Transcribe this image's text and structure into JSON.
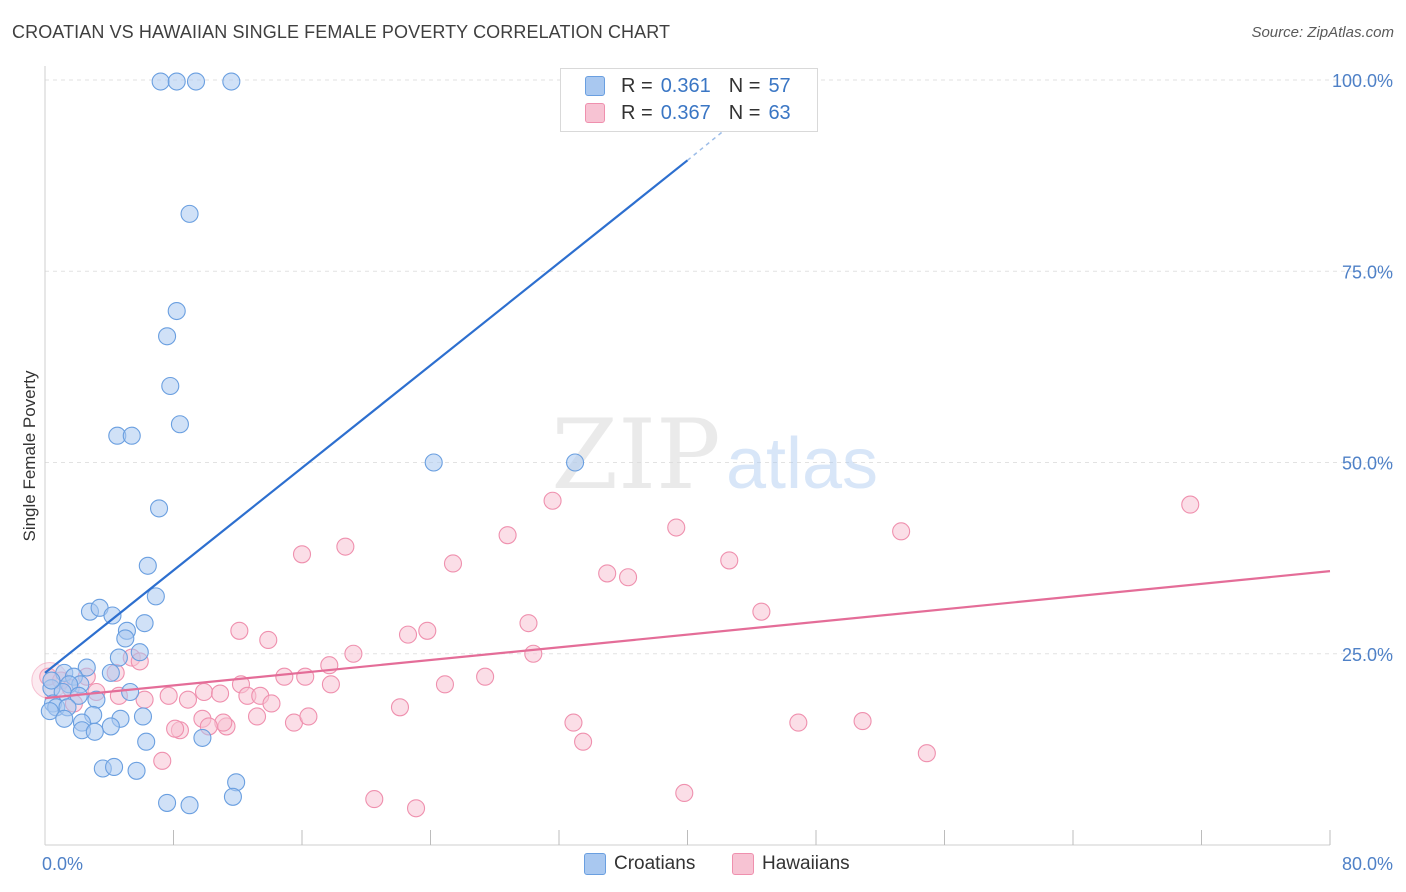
{
  "header": {
    "title": "CROATIAN VS HAWAIIAN SINGLE FEMALE POVERTY CORRELATION CHART",
    "source": "Source: ZipAtlas.com"
  },
  "watermark": {
    "zip": "ZIP",
    "atlas": "atlas"
  },
  "legend_top": {
    "rows": [
      {
        "r_label": "R =",
        "r_value": "0.361",
        "n_label": "N =",
        "n_value": "57",
        "color": "#a9c8f0",
        "stroke": "#6a9fe0"
      },
      {
        "r_label": "R =",
        "r_value": "0.367",
        "n_label": "N =",
        "n_value": "63",
        "color": "#f7c3d3",
        "stroke": "#ef90ae"
      }
    ]
  },
  "legend_bottom": [
    {
      "label": "Croatians",
      "color": "#a9c8f0",
      "stroke": "#6a9fe0"
    },
    {
      "label": "Hawaiians",
      "color": "#f7c3d3",
      "stroke": "#ef90ae"
    }
  ],
  "chart_data": {
    "type": "scatter",
    "title": "CROATIAN VS HAWAIIAN SINGLE FEMALE POVERTY CORRELATION CHART",
    "xlabel": "",
    "ylabel": "Single Female Poverty",
    "xlim": [
      0,
      80
    ],
    "ylim": [
      0,
      100
    ],
    "x_tick_labels": [
      "0.0%",
      "80.0%"
    ],
    "y_tick_labels": [
      "25.0%",
      "50.0%",
      "75.0%",
      "100.0%"
    ],
    "y_ticks": [
      25,
      50,
      75,
      100
    ],
    "x_minor_ticks": [
      8,
      16,
      24,
      32,
      40,
      48,
      56,
      64,
      72,
      80
    ],
    "grid": true,
    "legend_position": "top-center",
    "colors": {
      "croatians_fill": "#a9c8f0",
      "croatians_stroke": "#6a9fe0",
      "croatians_line": "#2d6fcf",
      "hawaiians_fill": "#f7c3d3",
      "hawaiians_stroke": "#ef90ae",
      "hawaiians_line": "#e46d98",
      "tick_label": "#4f81c7"
    },
    "series": [
      {
        "name": "Croatians",
        "points": [
          [
            7.2,
            99.8
          ],
          [
            8.2,
            99.8
          ],
          [
            9.4,
            99.8
          ],
          [
            11.6,
            99.8
          ],
          [
            9.0,
            82.5
          ],
          [
            8.2,
            69.8
          ],
          [
            7.6,
            66.5
          ],
          [
            7.8,
            60.0
          ],
          [
            8.4,
            55.0
          ],
          [
            4.5,
            53.5
          ],
          [
            5.4,
            53.5
          ],
          [
            7.1,
            44.0
          ],
          [
            6.4,
            36.5
          ],
          [
            6.9,
            32.5
          ],
          [
            2.8,
            30.5
          ],
          [
            3.4,
            31.0
          ],
          [
            4.2,
            30.0
          ],
          [
            6.2,
            29.0
          ],
          [
            5.1,
            28.0
          ],
          [
            5.0,
            27.0
          ],
          [
            5.9,
            25.2
          ],
          [
            4.6,
            24.5
          ],
          [
            2.6,
            23.2
          ],
          [
            1.2,
            22.5
          ],
          [
            1.8,
            22.0
          ],
          [
            4.1,
            22.5
          ],
          [
            2.2,
            21.0
          ],
          [
            1.5,
            21.0
          ],
          [
            0.4,
            20.5
          ],
          [
            1.1,
            20.0
          ],
          [
            2.1,
            19.5
          ],
          [
            5.3,
            20.0
          ],
          [
            3.2,
            19.0
          ],
          [
            0.5,
            18.5
          ],
          [
            0.7,
            18.0
          ],
          [
            1.4,
            18.0
          ],
          [
            0.3,
            17.5
          ],
          [
            3.0,
            17.0
          ],
          [
            1.2,
            16.5
          ],
          [
            4.7,
            16.5
          ],
          [
            6.1,
            16.8
          ],
          [
            2.3,
            16.0
          ],
          [
            4.1,
            15.5
          ],
          [
            2.3,
            15.0
          ],
          [
            3.1,
            14.8
          ],
          [
            9.8,
            14.0
          ],
          [
            6.3,
            13.5
          ],
          [
            3.6,
            10.0
          ],
          [
            4.3,
            10.2
          ],
          [
            5.7,
            9.7
          ],
          [
            11.9,
            8.2
          ],
          [
            7.6,
            5.5
          ],
          [
            9.0,
            5.2
          ],
          [
            11.7,
            6.3
          ],
          [
            24.2,
            50.0
          ],
          [
            33.0,
            50.0
          ],
          [
            0.4,
            21.5
          ]
        ]
      },
      {
        "name": "Hawaiians",
        "points": [
          [
            0.2,
            22.0
          ],
          [
            1.0,
            21.5
          ],
          [
            1.6,
            20.5
          ],
          [
            2.6,
            22.0
          ],
          [
            3.2,
            20.0
          ],
          [
            4.4,
            22.5
          ],
          [
            5.4,
            24.5
          ],
          [
            5.9,
            24.0
          ],
          [
            4.6,
            19.5
          ],
          [
            6.2,
            19.0
          ],
          [
            7.7,
            19.5
          ],
          [
            8.9,
            19.0
          ],
          [
            9.9,
            20.0
          ],
          [
            10.9,
            19.8
          ],
          [
            12.2,
            21.0
          ],
          [
            12.6,
            19.5
          ],
          [
            11.3,
            15.5
          ],
          [
            13.4,
            19.5
          ],
          [
            12.1,
            28.0
          ],
          [
            13.9,
            26.8
          ],
          [
            14.9,
            22.0
          ],
          [
            15.5,
            16.0
          ],
          [
            14.1,
            18.5
          ],
          [
            13.2,
            16.8
          ],
          [
            11.1,
            16.0
          ],
          [
            9.8,
            16.5
          ],
          [
            10.2,
            15.5
          ],
          [
            8.4,
            15.0
          ],
          [
            8.1,
            15.2
          ],
          [
            7.3,
            11.0
          ],
          [
            16.0,
            38.0
          ],
          [
            18.7,
            39.0
          ],
          [
            17.7,
            23.5
          ],
          [
            16.2,
            22.0
          ],
          [
            17.8,
            21.0
          ],
          [
            16.4,
            16.8
          ],
          [
            19.2,
            25.0
          ],
          [
            22.6,
            27.5
          ],
          [
            23.8,
            28.0
          ],
          [
            22.1,
            18.0
          ],
          [
            25.4,
            36.8
          ],
          [
            24.9,
            21.0
          ],
          [
            27.4,
            22.0
          ],
          [
            28.8,
            40.5
          ],
          [
            30.1,
            29.0
          ],
          [
            30.4,
            25.0
          ],
          [
            31.6,
            45.0
          ],
          [
            32.9,
            16.0
          ],
          [
            33.5,
            13.5
          ],
          [
            35.0,
            35.5
          ],
          [
            36.3,
            35.0
          ],
          [
            39.3,
            41.5
          ],
          [
            42.6,
            37.2
          ],
          [
            44.6,
            30.5
          ],
          [
            46.9,
            16.0
          ],
          [
            50.9,
            16.2
          ],
          [
            53.3,
            41.0
          ],
          [
            54.9,
            12.0
          ],
          [
            71.3,
            44.5
          ],
          [
            20.5,
            6.0
          ],
          [
            23.1,
            4.8
          ],
          [
            39.8,
            6.8
          ],
          [
            1.8,
            18.5
          ]
        ]
      }
    ],
    "trend_lines": [
      {
        "series": "Croatians",
        "x": [
          0,
          40
        ],
        "y": [
          22.5,
          89.5
        ],
        "dashed_extension_to": [
          43.5,
          95.5
        ]
      },
      {
        "series": "Hawaiians",
        "x": [
          0,
          80
        ],
        "y": [
          19.2,
          35.8
        ]
      }
    ]
  }
}
